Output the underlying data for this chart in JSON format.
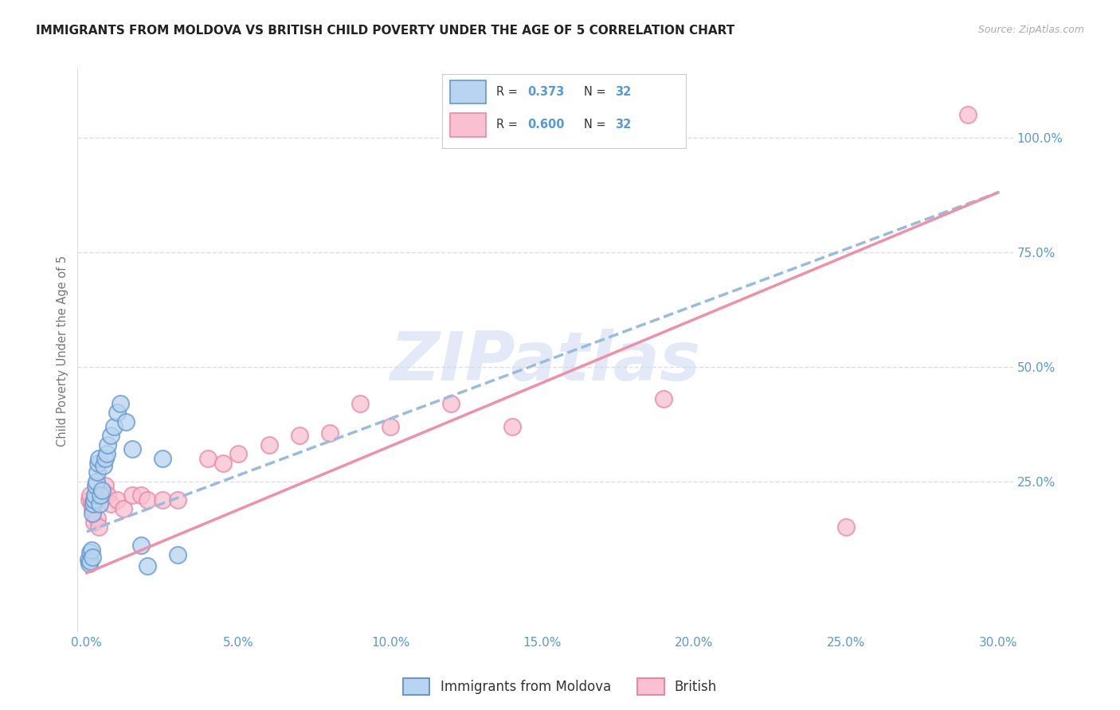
{
  "title": "IMMIGRANTS FROM MOLDOVA VS BRITISH CHILD POVERTY UNDER THE AGE OF 5 CORRELATION CHART",
  "source": "Source: ZipAtlas.com",
  "ylabel": "Child Poverty Under the Age of 5",
  "x_tick_labels": [
    "0.0%",
    "5.0%",
    "10.0%",
    "15.0%",
    "20.0%",
    "25.0%",
    "30.0%"
  ],
  "x_tick_values": [
    0.0,
    5.0,
    10.0,
    15.0,
    20.0,
    25.0,
    30.0
  ],
  "y_tick_labels": [
    "25.0%",
    "50.0%",
    "75.0%",
    "100.0%"
  ],
  "y_tick_values": [
    25.0,
    50.0,
    75.0,
    100.0
  ],
  "xlim": [
    -0.3,
    30.5
  ],
  "ylim": [
    -8.0,
    115.0
  ],
  "legend_bottom": [
    "Immigrants from Moldova",
    "British"
  ],
  "blue_scatter": [
    [
      0.05,
      8.0
    ],
    [
      0.08,
      7.0
    ],
    [
      0.1,
      9.5
    ],
    [
      0.12,
      7.5
    ],
    [
      0.15,
      10.0
    ],
    [
      0.18,
      8.5
    ],
    [
      0.2,
      18.0
    ],
    [
      0.22,
      20.0
    ],
    [
      0.25,
      21.0
    ],
    [
      0.28,
      22.0
    ],
    [
      0.3,
      24.0
    ],
    [
      0.32,
      25.0
    ],
    [
      0.35,
      27.0
    ],
    [
      0.38,
      29.0
    ],
    [
      0.4,
      30.0
    ],
    [
      0.42,
      20.0
    ],
    [
      0.45,
      22.0
    ],
    [
      0.5,
      23.0
    ],
    [
      0.55,
      28.5
    ],
    [
      0.6,
      30.0
    ],
    [
      0.65,
      31.0
    ],
    [
      0.7,
      33.0
    ],
    [
      0.8,
      35.0
    ],
    [
      0.9,
      37.0
    ],
    [
      1.0,
      40.0
    ],
    [
      1.1,
      42.0
    ],
    [
      1.3,
      38.0
    ],
    [
      1.5,
      32.0
    ],
    [
      1.8,
      11.0
    ],
    [
      2.0,
      6.5
    ],
    [
      2.5,
      30.0
    ],
    [
      3.0,
      9.0
    ]
  ],
  "pink_scatter": [
    [
      0.08,
      21.0
    ],
    [
      0.1,
      22.0
    ],
    [
      0.15,
      20.0
    ],
    [
      0.2,
      19.0
    ],
    [
      0.25,
      16.0
    ],
    [
      0.3,
      21.0
    ],
    [
      0.35,
      17.0
    ],
    [
      0.4,
      15.0
    ],
    [
      0.5,
      23.0
    ],
    [
      0.6,
      24.0
    ],
    [
      0.7,
      22.0
    ],
    [
      0.8,
      20.0
    ],
    [
      1.0,
      21.0
    ],
    [
      1.2,
      19.0
    ],
    [
      1.5,
      22.0
    ],
    [
      1.8,
      22.0
    ],
    [
      2.0,
      21.0
    ],
    [
      2.5,
      21.0
    ],
    [
      3.0,
      21.0
    ],
    [
      4.0,
      30.0
    ],
    [
      4.5,
      29.0
    ],
    [
      5.0,
      31.0
    ],
    [
      6.0,
      33.0
    ],
    [
      7.0,
      35.0
    ],
    [
      8.0,
      35.5
    ],
    [
      9.0,
      42.0
    ],
    [
      10.0,
      37.0
    ],
    [
      12.0,
      42.0
    ],
    [
      14.0,
      37.0
    ],
    [
      19.0,
      43.0
    ],
    [
      25.0,
      15.0
    ],
    [
      29.0,
      105.0
    ]
  ],
  "blue_line_x": [
    0.0,
    30.0
  ],
  "blue_line_y": [
    14.0,
    88.0
  ],
  "pink_line_x": [
    0.0,
    30.0
  ],
  "pink_line_y": [
    5.0,
    88.0
  ],
  "blue_scatter_face": "#b8d4f0",
  "blue_scatter_edge": "#6699cc",
  "pink_scatter_face": "#f8c0d0",
  "pink_scatter_edge": "#e888a8",
  "blue_line_color": "#99bbdd",
  "pink_line_color": "#f090a8",
  "watermark": "ZIPatlas",
  "watermark_color": "#ccd8f0",
  "background_color": "#ffffff",
  "grid_color": "#e0dde8",
  "axis_label_color": "#5599dd",
  "title_color": "#222222"
}
